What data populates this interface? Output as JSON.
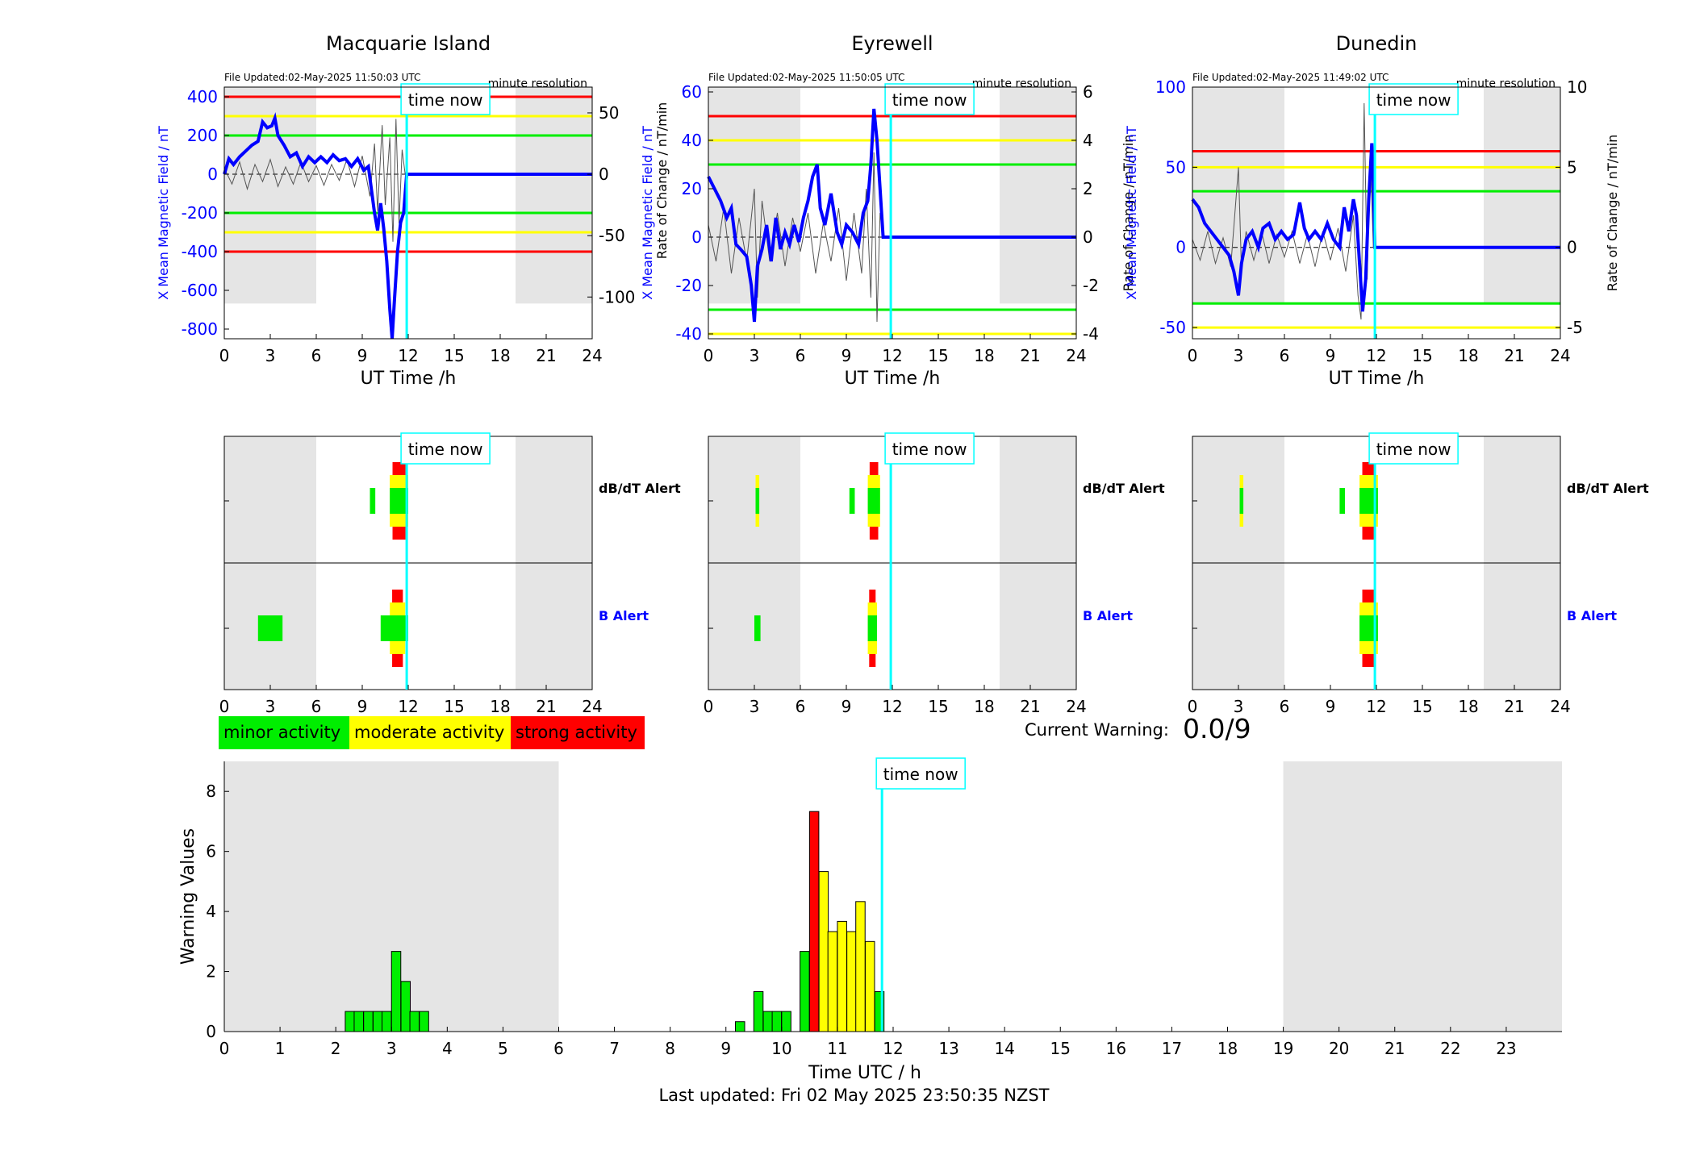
{
  "stations": [
    {
      "title": "Macquarie Island",
      "file_updated": "File Updated:02-May-2025 11:50:03 UTC",
      "resolution": "minute resolution",
      "ylabel_left": "X Mean Magnetic Field / nT",
      "ylabel_right": "",
      "ylim_left": [
        -850,
        450
      ],
      "ylim_right": [
        -134,
        71
      ],
      "yticks_left": [
        -800,
        -600,
        -400,
        -200,
        0,
        200,
        400
      ],
      "yticks_right": [
        -100,
        -50,
        0,
        50
      ],
      "thresholds": {
        "red": 400,
        "yellow": 300,
        "green": 200
      },
      "field": [
        [
          0,
          0
        ],
        [
          0.3,
          80
        ],
        [
          0.6,
          50
        ],
        [
          1,
          90
        ],
        [
          1.4,
          120
        ],
        [
          1.8,
          150
        ],
        [
          2.2,
          170
        ],
        [
          2.5,
          270
        ],
        [
          2.8,
          240
        ],
        [
          3.1,
          250
        ],
        [
          3.3,
          290
        ],
        [
          3.5,
          200
        ],
        [
          3.9,
          150
        ],
        [
          4.3,
          90
        ],
        [
          4.7,
          110
        ],
        [
          5.1,
          40
        ],
        [
          5.5,
          90
        ],
        [
          5.9,
          60
        ],
        [
          6.3,
          90
        ],
        [
          6.7,
          60
        ],
        [
          7.1,
          100
        ],
        [
          7.5,
          70
        ],
        [
          7.9,
          80
        ],
        [
          8.3,
          40
        ],
        [
          8.7,
          80
        ],
        [
          9.1,
          20
        ],
        [
          9.4,
          40
        ],
        [
          9.6,
          -80
        ],
        [
          9.8,
          -200
        ],
        [
          10,
          -290
        ],
        [
          10.2,
          -150
        ],
        [
          10.4,
          -280
        ],
        [
          10.6,
          -450
        ],
        [
          10.8,
          -700
        ],
        [
          10.95,
          -850
        ],
        [
          11.1,
          -650
        ],
        [
          11.3,
          -400
        ],
        [
          11.5,
          -250
        ],
        [
          11.7,
          -200
        ],
        [
          11.9,
          0
        ],
        [
          24,
          0
        ]
      ],
      "roc": [
        [
          0,
          5
        ],
        [
          0.5,
          -8
        ],
        [
          1,
          10
        ],
        [
          1.5,
          -12
        ],
        [
          2,
          8
        ],
        [
          2.5,
          -6
        ],
        [
          3,
          12
        ],
        [
          3.5,
          -10
        ],
        [
          4,
          6
        ],
        [
          4.5,
          -8
        ],
        [
          5,
          10
        ],
        [
          5.5,
          -6
        ],
        [
          6,
          7
        ],
        [
          6.5,
          -9
        ],
        [
          7,
          8
        ],
        [
          7.5,
          -5
        ],
        [
          8,
          12
        ],
        [
          8.5,
          -10
        ],
        [
          9,
          15
        ],
        [
          9.5,
          -18
        ],
        [
          9.8,
          25
        ],
        [
          10,
          -30
        ],
        [
          10.3,
          40
        ],
        [
          10.5,
          -25
        ],
        [
          10.8,
          30
        ],
        [
          11,
          -55
        ],
        [
          11.2,
          45
        ],
        [
          11.4,
          -40
        ],
        [
          11.6,
          20
        ],
        [
          11.8,
          0
        ]
      ]
    },
    {
      "title": "Eyrewell",
      "file_updated": "File Updated:02-May-2025 11:50:05 UTC",
      "resolution": "minute resolution",
      "ylabel_left": "X Mean Magnetic Field / nT",
      "ylabel_right": "Rate of Change / nT/min",
      "ylim_left": [
        -42,
        62
      ],
      "ylim_right": [
        -4.2,
        6.2
      ],
      "yticks_left": [
        -40,
        -20,
        0,
        20,
        40,
        60
      ],
      "yticks_right": [
        -4,
        -2,
        0,
        2,
        4,
        6
      ],
      "thresholds": {
        "red": 50,
        "yellow": 40,
        "green": 30
      },
      "field": [
        [
          0,
          25
        ],
        [
          0.4,
          20
        ],
        [
          0.8,
          15
        ],
        [
          1.2,
          8
        ],
        [
          1.5,
          12
        ],
        [
          1.8,
          -3
        ],
        [
          2.1,
          -5
        ],
        [
          2.5,
          -8
        ],
        [
          2.8,
          -20
        ],
        [
          3,
          -35
        ],
        [
          3.2,
          -12
        ],
        [
          3.5,
          -5
        ],
        [
          3.8,
          5
        ],
        [
          4.1,
          -10
        ],
        [
          4.4,
          8
        ],
        [
          4.7,
          -5
        ],
        [
          5,
          2
        ],
        [
          5.3,
          -3
        ],
        [
          5.6,
          5
        ],
        [
          5.9,
          -2
        ],
        [
          6.2,
          8
        ],
        [
          6.5,
          15
        ],
        [
          6.8,
          25
        ],
        [
          7.1,
          30
        ],
        [
          7.3,
          12
        ],
        [
          7.6,
          5
        ],
        [
          8,
          18
        ],
        [
          8.4,
          2
        ],
        [
          8.7,
          -3
        ],
        [
          9,
          5
        ],
        [
          9.4,
          2
        ],
        [
          9.8,
          -3
        ],
        [
          10.1,
          10
        ],
        [
          10.4,
          15
        ],
        [
          10.6,
          30
        ],
        [
          10.8,
          53
        ],
        [
          11,
          40
        ],
        [
          11.2,
          20
        ],
        [
          11.4,
          0
        ],
        [
          24,
          0
        ]
      ],
      "roc": [
        [
          0,
          0.5
        ],
        [
          0.5,
          -1
        ],
        [
          1,
          1.2
        ],
        [
          1.5,
          -1.5
        ],
        [
          2,
          0.8
        ],
        [
          2.5,
          -1
        ],
        [
          3,
          2
        ],
        [
          3.2,
          -2.5
        ],
        [
          3.5,
          1.5
        ],
        [
          4,
          -1
        ],
        [
          4.5,
          1
        ],
        [
          5,
          -1.2
        ],
        [
          5.5,
          0.8
        ],
        [
          6,
          -0.6
        ],
        [
          6.5,
          1
        ],
        [
          7,
          -1.5
        ],
        [
          7.5,
          0.6
        ],
        [
          8,
          -1
        ],
        [
          8.5,
          1.2
        ],
        [
          9,
          -1.8
        ],
        [
          9.5,
          1
        ],
        [
          10,
          -1.5
        ],
        [
          10.3,
          2
        ],
        [
          10.6,
          -2.5
        ],
        [
          10.8,
          3.5
        ],
        [
          11,
          -3.5
        ],
        [
          11.2,
          1
        ],
        [
          11.4,
          0
        ]
      ]
    },
    {
      "title": "Dunedin",
      "file_updated": "File Updated:02-May-2025 11:49:02 UTC",
      "resolution": "minute resolution",
      "ylabel_left": "X Mean Magnetic Field / nT",
      "ylabel_right": "Rate of Change / nT/min",
      "ylim_left": [
        -57,
        100
      ],
      "ylim_right": [
        -5.7,
        10
      ],
      "yticks_left": [
        -50,
        0,
        50,
        100
      ],
      "yticks_right": [
        -5,
        0,
        5,
        10
      ],
      "thresholds": {
        "red": 60,
        "yellow": 50,
        "green": 35
      },
      "field": [
        [
          0,
          30
        ],
        [
          0.4,
          25
        ],
        [
          0.8,
          15
        ],
        [
          1.2,
          10
        ],
        [
          1.6,
          5
        ],
        [
          2,
          0
        ],
        [
          2.4,
          -5
        ],
        [
          2.7,
          -15
        ],
        [
          3,
          -30
        ],
        [
          3.2,
          -10
        ],
        [
          3.5,
          5
        ],
        [
          3.9,
          10
        ],
        [
          4.3,
          0
        ],
        [
          4.6,
          12
        ],
        [
          5,
          15
        ],
        [
          5.4,
          5
        ],
        [
          5.8,
          10
        ],
        [
          6.2,
          5
        ],
        [
          6.6,
          8
        ],
        [
          7,
          28
        ],
        [
          7.3,
          12
        ],
        [
          7.6,
          5
        ],
        [
          8,
          10
        ],
        [
          8.4,
          5
        ],
        [
          8.8,
          15
        ],
        [
          9.2,
          5
        ],
        [
          9.6,
          0
        ],
        [
          9.9,
          25
        ],
        [
          10.2,
          10
        ],
        [
          10.5,
          30
        ],
        [
          10.7,
          20
        ],
        [
          10.9,
          -10
        ],
        [
          11.1,
          -40
        ],
        [
          11.3,
          -20
        ],
        [
          11.5,
          30
        ],
        [
          11.7,
          65
        ],
        [
          11.8,
          40
        ],
        [
          11.9,
          0
        ],
        [
          24,
          0
        ]
      ],
      "roc": [
        [
          0,
          0.5
        ],
        [
          0.5,
          -0.8
        ],
        [
          1,
          1
        ],
        [
          1.5,
          -1
        ],
        [
          2,
          0.6
        ],
        [
          2.5,
          -1.2
        ],
        [
          3,
          5
        ],
        [
          3.2,
          -1.5
        ],
        [
          3.5,
          1
        ],
        [
          4,
          -0.8
        ],
        [
          4.5,
          1
        ],
        [
          5,
          -1
        ],
        [
          5.5,
          0.8
        ],
        [
          6,
          -0.6
        ],
        [
          6.5,
          1
        ],
        [
          7,
          -1
        ],
        [
          7.5,
          0.8
        ],
        [
          8,
          -1.2
        ],
        [
          8.5,
          1
        ],
        [
          9,
          -0.8
        ],
        [
          9.5,
          1.2
        ],
        [
          10,
          -1.5
        ],
        [
          10.5,
          2
        ],
        [
          10.8,
          -3
        ],
        [
          11,
          -4.5
        ],
        [
          11.2,
          9
        ],
        [
          11.4,
          -2
        ],
        [
          11.6,
          6
        ],
        [
          11.8,
          0
        ]
      ]
    }
  ],
  "x_axis": {
    "ticks": [
      0,
      3,
      6,
      9,
      12,
      15,
      18,
      21,
      24
    ],
    "xlabel": "UT Time /h",
    "xlim": [
      0,
      24
    ]
  },
  "night_shading": [
    [
      0,
      6
    ],
    [
      19,
      24
    ]
  ],
  "time_now_label": "time now",
  "time_now_hour": 11.9,
  "alerts": {
    "row_labels": {
      "dbdt": "dB/dT Alert",
      "b": "B Alert"
    },
    "stations": [
      {
        "dbdt": [
          {
            "t": 9.5,
            "w": 0.35,
            "level": "green"
          },
          {
            "t": 10.8,
            "w": 1.2,
            "level": "red"
          },
          {
            "t": 10.8,
            "w": 1.2,
            "level": "yellow_inner"
          }
        ],
        "b": [
          {
            "t": 2.2,
            "w": 1.6,
            "level": "green_big"
          },
          {
            "t": 10.8,
            "w": 1.0,
            "level": "red"
          },
          {
            "t": 10.2,
            "w": 1.8,
            "level": "green_b"
          }
        ]
      },
      {
        "dbdt": [
          {
            "t": 3.0,
            "w": 0.4,
            "level": "ygy"
          },
          {
            "t": 9.2,
            "w": 0.35,
            "level": "green"
          },
          {
            "t": 10.4,
            "w": 0.8,
            "level": "red"
          }
        ],
        "b": [
          {
            "t": 3.0,
            "w": 0.4,
            "level": "green"
          },
          {
            "t": 10.4,
            "w": 0.6,
            "level": "red"
          }
        ]
      },
      {
        "dbdt": [
          {
            "t": 3.0,
            "w": 0.4,
            "level": "ygy"
          },
          {
            "t": 9.6,
            "w": 0.35,
            "level": "green"
          },
          {
            "t": 10.9,
            "w": 1.2,
            "level": "red"
          }
        ],
        "b": [
          {
            "t": 10.9,
            "w": 1.2,
            "level": "red_small"
          }
        ]
      }
    ]
  },
  "legend": [
    {
      "label": "minor activity",
      "color": "#00ee00"
    },
    {
      "label": "moderate activity",
      "color": "#ffff00"
    },
    {
      "label": "strong activity",
      "color": "#ff0000"
    }
  ],
  "current_warning": {
    "label": "Current Warning:",
    "value": "0.0/9"
  },
  "chart_data": {
    "type": "bar",
    "xlabel": "Time UTC / h",
    "ylabel": "Warning Values",
    "xlim": [
      0,
      24
    ],
    "ylim": [
      0,
      9
    ],
    "xticks": [
      0,
      1,
      2,
      3,
      4,
      5,
      6,
      7,
      8,
      9,
      10,
      11,
      12,
      13,
      14,
      15,
      16,
      17,
      18,
      19,
      20,
      21,
      22,
      23
    ],
    "yticks": [
      0,
      2,
      4,
      6,
      8
    ],
    "bar_width_h": 0.1667,
    "bars": [
      {
        "t": 2.17,
        "v": 0.67,
        "c": "green"
      },
      {
        "t": 2.33,
        "v": 0.67,
        "c": "green"
      },
      {
        "t": 2.5,
        "v": 0.67,
        "c": "green"
      },
      {
        "t": 2.67,
        "v": 0.67,
        "c": "green"
      },
      {
        "t": 2.83,
        "v": 0.67,
        "c": "green"
      },
      {
        "t": 3.0,
        "v": 2.67,
        "c": "green"
      },
      {
        "t": 3.17,
        "v": 1.67,
        "c": "green"
      },
      {
        "t": 3.33,
        "v": 0.67,
        "c": "green"
      },
      {
        "t": 3.5,
        "v": 0.67,
        "c": "green"
      },
      {
        "t": 9.17,
        "v": 0.33,
        "c": "green"
      },
      {
        "t": 9.5,
        "v": 1.33,
        "c": "green"
      },
      {
        "t": 9.67,
        "v": 0.67,
        "c": "green"
      },
      {
        "t": 9.83,
        "v": 0.67,
        "c": "green"
      },
      {
        "t": 10.0,
        "v": 0.67,
        "c": "green"
      },
      {
        "t": 10.33,
        "v": 2.67,
        "c": "green"
      },
      {
        "t": 10.5,
        "v": 7.33,
        "c": "red"
      },
      {
        "t": 10.67,
        "v": 5.33,
        "c": "yellow"
      },
      {
        "t": 10.83,
        "v": 3.33,
        "c": "yellow"
      },
      {
        "t": 11.0,
        "v": 3.67,
        "c": "yellow"
      },
      {
        "t": 11.17,
        "v": 3.33,
        "c": "yellow"
      },
      {
        "t": 11.33,
        "v": 4.33,
        "c": "yellow"
      },
      {
        "t": 11.5,
        "v": 3.0,
        "c": "yellow"
      },
      {
        "t": 11.67,
        "v": 1.33,
        "c": "green"
      }
    ],
    "night_shading": [
      [
        0,
        6
      ],
      [
        19,
        24
      ]
    ],
    "time_now": 11.8
  },
  "last_updated": "Last updated: Fri 02 May 2025 23:50:35 NZST",
  "colors": {
    "red": "#ff0000",
    "yellow": "#ffff00",
    "green": "#00ee00",
    "blue": "#0000ff",
    "cyan": "#00ffff",
    "night": "#e5e5e5",
    "trace": "#555555"
  }
}
